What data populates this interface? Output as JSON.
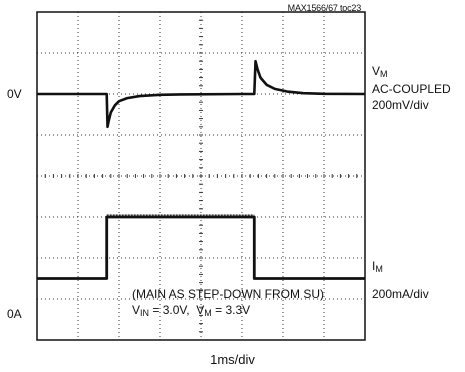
{
  "figure_tag": "MAX1566/67 toc23",
  "chart_data": {
    "type": "line",
    "title": "",
    "xlabel": "1ms/div",
    "grid": true,
    "divisions": {
      "x": 8,
      "y": 8
    },
    "conditions": {
      "line1": "(MAIN AS STEP-DOWN FROM SU)",
      "vin_sym": "V",
      "vin_sub": "IN",
      "vin_val": " = 3.0V,",
      "vm_sym": "V",
      "vm_sub": "M",
      "vm_val": " = 3.3V"
    },
    "series": [
      {
        "name_sym": "V",
        "name_sub": "M",
        "coupling": "AC-COUPLED",
        "scale": "200mV/div",
        "ground_label": "0V",
        "ground_division": 2,
        "unit": "mV",
        "time_div": [
          0,
          1.7,
          1.72,
          1.75,
          1.8,
          1.9,
          2.0,
          2.2,
          2.5,
          3.0,
          3.5,
          5.0,
          5.3,
          5.33,
          5.38,
          5.45,
          5.6,
          5.8,
          6.1,
          6.5,
          7.0,
          8.0
        ],
        "values": [
          0,
          0,
          -160,
          -130,
          -90,
          -55,
          -35,
          -20,
          -10,
          -4,
          -2,
          0,
          0,
          160,
          120,
          80,
          45,
          25,
          12,
          4,
          1,
          0
        ]
      },
      {
        "name_sym": "I",
        "name_sub": "M",
        "scale": "200mA/div",
        "ground_label": "0A",
        "ground_division": 6.5,
        "unit": "mA",
        "time_div": [
          0,
          1.7,
          1.7,
          5.3,
          5.3,
          8.0
        ],
        "values": [
          0,
          0,
          300,
          300,
          0,
          0
        ]
      }
    ]
  }
}
